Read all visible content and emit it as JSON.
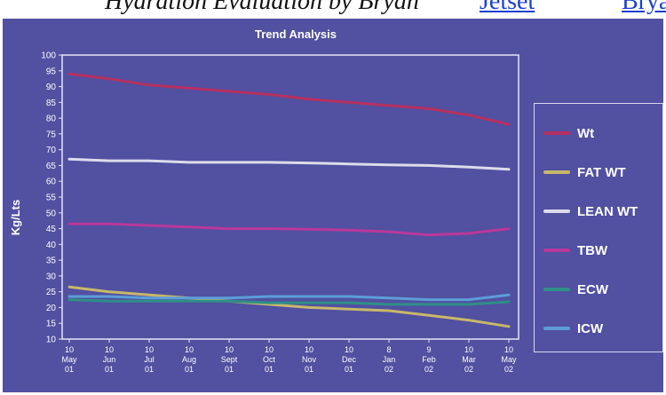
{
  "header": {
    "text": "Hydration Evaluation by Bryan",
    "link1": "Jetset",
    "link2": "Bryan"
  },
  "chart_data": {
    "type": "line",
    "title": "Trend Analysis",
    "ylabel": "Kg/Lts",
    "xlabel": "",
    "ylim": [
      10,
      100
    ],
    "yticks": [
      10,
      15,
      20,
      25,
      30,
      35,
      40,
      45,
      50,
      55,
      60,
      65,
      70,
      75,
      80,
      85,
      90,
      95,
      100
    ],
    "categories": [
      [
        "10",
        "May",
        "01"
      ],
      [
        "10",
        "Jun",
        "01"
      ],
      [
        "10",
        "Jul",
        "01"
      ],
      [
        "10",
        "Aug",
        "01"
      ],
      [
        "10",
        "Sept",
        "01"
      ],
      [
        "10",
        "Oct",
        "01"
      ],
      [
        "10",
        "Nov",
        "01"
      ],
      [
        "10",
        "Dec",
        "01"
      ],
      [
        "8",
        "Jan",
        "02"
      ],
      [
        "9",
        "Feb",
        "02"
      ],
      [
        "10",
        "Mar",
        "02"
      ],
      [
        "10",
        "May",
        "02"
      ]
    ],
    "legend_position": "right",
    "series": [
      {
        "name": "Wt",
        "color": "#b5305f",
        "values": [
          94,
          92.5,
          90.5,
          89.5,
          88.5,
          87.5,
          86,
          85,
          84,
          83,
          81,
          78
        ]
      },
      {
        "name": "FAT WT",
        "color": "#c8b86a",
        "values": [
          26.5,
          25,
          24,
          23,
          22,
          21,
          20,
          19.5,
          19,
          17.5,
          16,
          14
        ]
      },
      {
        "name": "LEAN WT",
        "color": "#dcdcec",
        "values": [
          67,
          66.5,
          66.5,
          66,
          66,
          66,
          65.8,
          65.5,
          65.2,
          65,
          64.5,
          63.8
        ]
      },
      {
        "name": "TBW",
        "color": "#b9389a",
        "values": [
          46.5,
          46.5,
          46,
          45.5,
          45,
          45,
          44.8,
          44.5,
          44,
          43,
          43.5,
          45
        ]
      },
      {
        "name": "ECW",
        "color": "#2f8f86",
        "values": [
          22.5,
          22,
          22,
          22,
          22,
          21.5,
          21.5,
          21.5,
          21,
          21,
          21,
          21.8
        ]
      },
      {
        "name": "ICW",
        "color": "#5c9ed8",
        "values": [
          23.5,
          23.5,
          23,
          23,
          23,
          23.5,
          23.5,
          23.5,
          23,
          22.5,
          22.5,
          24
        ]
      }
    ]
  }
}
